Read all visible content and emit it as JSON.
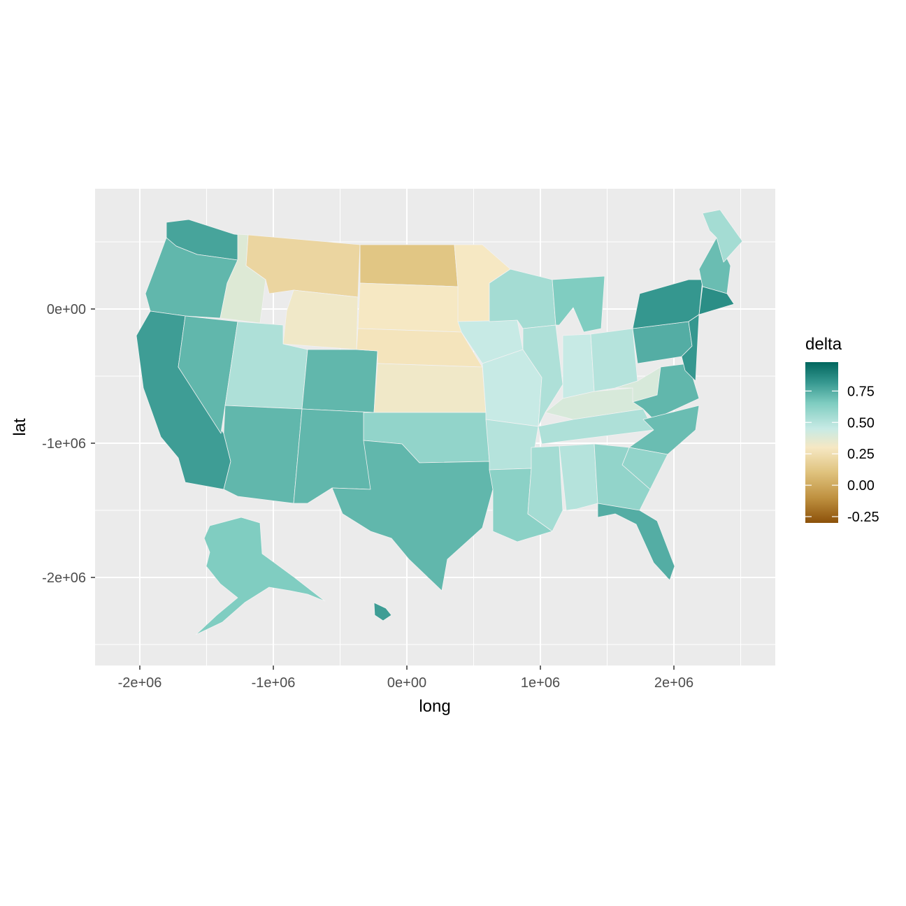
{
  "chart_data": {
    "type": "choropleth",
    "xlabel": "long",
    "ylabel": "lat",
    "x_ticks": [
      {
        "value": -2000000,
        "label": "-2e+06"
      },
      {
        "value": -1000000,
        "label": "-1e+06"
      },
      {
        "value": 0,
        "label": "0e+00"
      },
      {
        "value": 1000000,
        "label": "1e+06"
      },
      {
        "value": 2000000,
        "label": "2e+06"
      }
    ],
    "y_ticks": [
      {
        "value": 0,
        "label": "0e+00"
      },
      {
        "value": -1000000,
        "label": "-1e+06"
      },
      {
        "value": -2000000,
        "label": "-2e+06"
      }
    ],
    "xlim": [
      -2340000,
      2730000
    ],
    "ylim": [
      -2660000,
      900000
    ],
    "grid": true,
    "panel_background": "#ebebeb",
    "grid_color": "#ffffff",
    "legend": {
      "title": "delta",
      "position": "right",
      "limits": [
        -0.3,
        0.98
      ],
      "breaks": [
        {
          "value": 0.75,
          "label": "0.75"
        },
        {
          "value": 0.5,
          "label": "0.50"
        },
        {
          "value": 0.25,
          "label": "0.25"
        },
        {
          "value": 0.0,
          "label": "0.00"
        },
        {
          "value": -0.25,
          "label": "-0.25"
        }
      ],
      "palette": [
        {
          "value": -0.3,
          "color": "#8c510a"
        },
        {
          "value": -0.1,
          "color": "#bf9140"
        },
        {
          "value": 0.1,
          "color": "#dfc27d"
        },
        {
          "value": 0.3,
          "color": "#f6e8c3"
        },
        {
          "value": 0.45,
          "color": "#c7eae5"
        },
        {
          "value": 0.65,
          "color": "#80cdc1"
        },
        {
          "value": 0.82,
          "color": "#35978f"
        },
        {
          "value": 0.98,
          "color": "#01665e"
        }
      ],
      "na_color": "#7f7f7f"
    },
    "regions": [
      {
        "name": "Washington",
        "delta": 0.78
      },
      {
        "name": "Oregon",
        "delta": 0.72
      },
      {
        "name": "California",
        "delta": 0.8
      },
      {
        "name": "Nevada",
        "delta": 0.72
      },
      {
        "name": "Idaho",
        "delta": 0.38
      },
      {
        "name": "Montana",
        "delta": 0.2
      },
      {
        "name": "Wyoming",
        "delta": 0.32
      },
      {
        "name": "Utah",
        "delta": 0.52
      },
      {
        "name": "Arizona",
        "delta": 0.72
      },
      {
        "name": "Colorado",
        "delta": 0.72
      },
      {
        "name": "New Mexico",
        "delta": 0.72
      },
      {
        "name": "North Dakota",
        "delta": 0.12
      },
      {
        "name": "South Dakota",
        "delta": 0.3
      },
      {
        "name": "Nebraska",
        "delta": 0.28
      },
      {
        "name": "Kansas",
        "delta": 0.32
      },
      {
        "name": "Oklahoma",
        "delta": 0.6
      },
      {
        "name": "Texas",
        "delta": 0.72
      },
      {
        "name": "Minnesota",
        "delta": 0.3
      },
      {
        "name": "Iowa",
        "delta": 0.45
      },
      {
        "name": "Missouri",
        "delta": 0.45
      },
      {
        "name": "Arkansas",
        "delta": 0.5
      },
      {
        "name": "Louisiana",
        "delta": 0.62
      },
      {
        "name": "Wisconsin",
        "delta": 0.55
      },
      {
        "name": "Illinois",
        "delta": 0.52
      },
      {
        "name": "Michigan",
        "delta": 0.65
      },
      {
        "name": "Indiana",
        "delta": 0.45
      },
      {
        "name": "Kentucky",
        "delta": 0.4
      },
      {
        "name": "Tennessee",
        "delta": 0.52
      },
      {
        "name": "Mississippi",
        "delta": 0.55
      },
      {
        "name": "Alabama",
        "delta": 0.5
      },
      {
        "name": "Ohio",
        "delta": 0.5
      },
      {
        "name": "West Virginia",
        "delta": 0.4
      },
      {
        "name": "Virginia",
        "delta": 0.72
      },
      {
        "name": "North Carolina",
        "delta": 0.7
      },
      {
        "name": "South Carolina",
        "delta": 0.6
      },
      {
        "name": "Georgia",
        "delta": 0.6
      },
      {
        "name": "Florida",
        "delta": 0.75
      },
      {
        "name": "Pennsylvania",
        "delta": 0.75
      },
      {
        "name": "New York",
        "delta": 0.82
      },
      {
        "name": "Northern New England",
        "delta": 0.7
      },
      {
        "name": "Maine",
        "delta": 0.55
      },
      {
        "name": "Southern New England",
        "delta": 0.85
      },
      {
        "name": "New Jersey / Mid-Atlantic",
        "delta": 0.82
      },
      {
        "name": "Alaska",
        "delta": 0.65
      },
      {
        "name": "Hawaii",
        "delta": 0.8
      }
    ]
  }
}
